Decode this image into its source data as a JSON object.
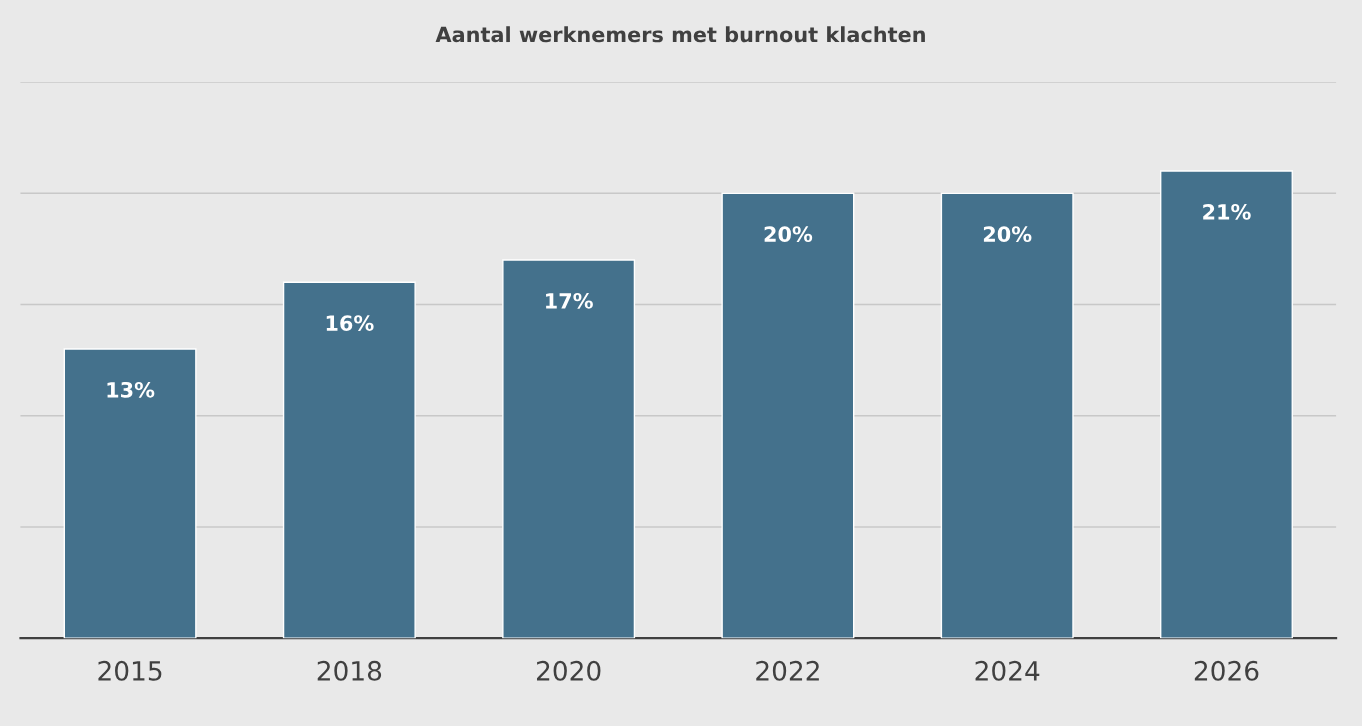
{
  "chart_data": {
    "type": "bar",
    "title": "Aantal werknemers met burnout klachten",
    "categories": [
      "2015",
      "2018",
      "2020",
      "2022",
      "2024",
      "2026"
    ],
    "values": [
      13,
      16,
      17,
      20,
      20,
      21
    ],
    "value_labels": [
      "13%",
      "16%",
      "17%",
      "20%",
      "20%",
      "21%"
    ],
    "color": "#44718c",
    "ylim": [
      0,
      25
    ],
    "yticks": [
      {
        "value": 0,
        "label": null
      },
      {
        "value": 5,
        "label": null
      },
      {
        "value": 10,
        "label": null
      },
      {
        "value": 15,
        "label": null
      },
      {
        "value": 20,
        "label": null
      },
      {
        "value": 25,
        "label": null
      }
    ],
    "grid": "y",
    "tick_labels": "x"
  }
}
